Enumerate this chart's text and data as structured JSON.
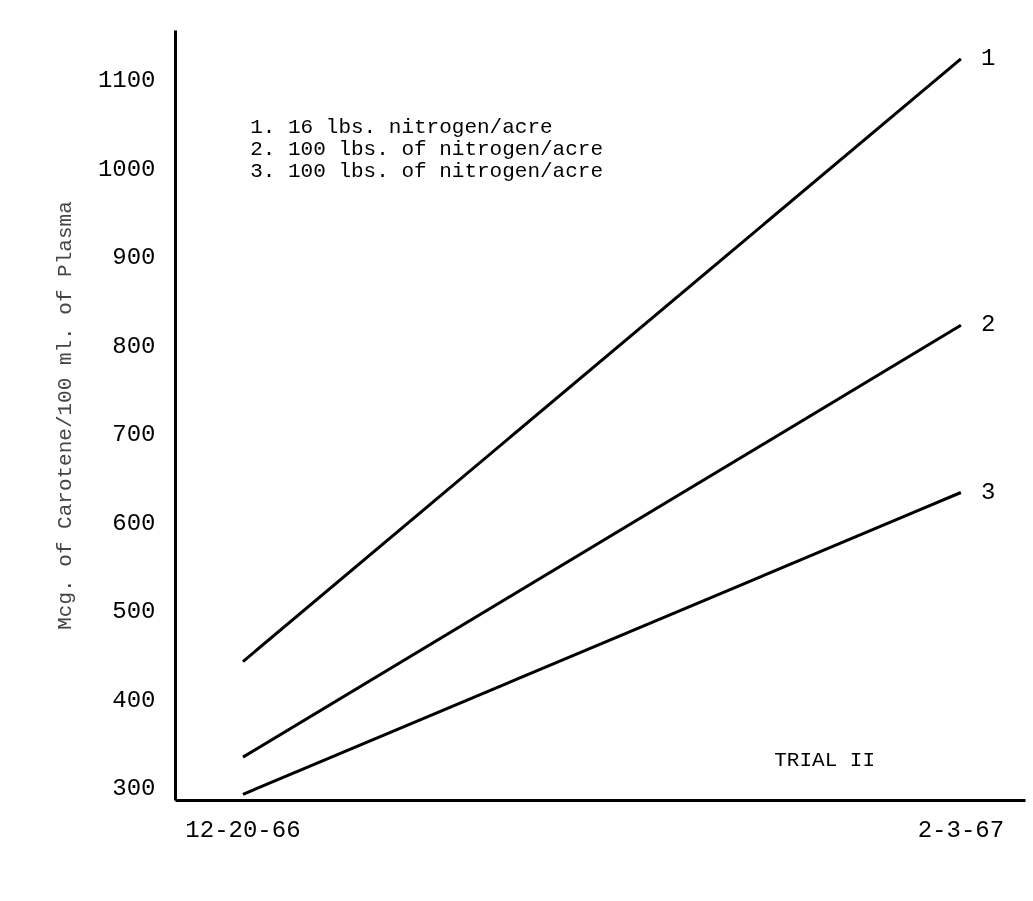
{
  "chart_data": {
    "type": "line",
    "ylabel": "Mcg. of Carotene/100 ml. of Plasma",
    "categories": [
      "12-20-66",
      "2-3-67"
    ],
    "series": [
      {
        "name": "1",
        "color": "#000000",
        "values": [
          442,
          1123
        ]
      },
      {
        "name": "2",
        "color": "#000000",
        "values": [
          334,
          822
        ]
      },
      {
        "name": "3",
        "color": "#000000",
        "values": [
          292,
          633
        ]
      }
    ],
    "ylim": [
      285,
      1155
    ],
    "yticks": [
      300,
      400,
      500,
      600,
      700,
      800,
      900,
      1000,
      1100
    ],
    "grid": false,
    "marker": "none",
    "line_style": "solid",
    "annotations": [
      "1. 16 lbs. nitrogen/acre",
      "2. 100 lbs. of nitrogen/acre",
      "3. 100 lbs. of nitrogen/acre",
      "TRIAL II"
    ]
  }
}
